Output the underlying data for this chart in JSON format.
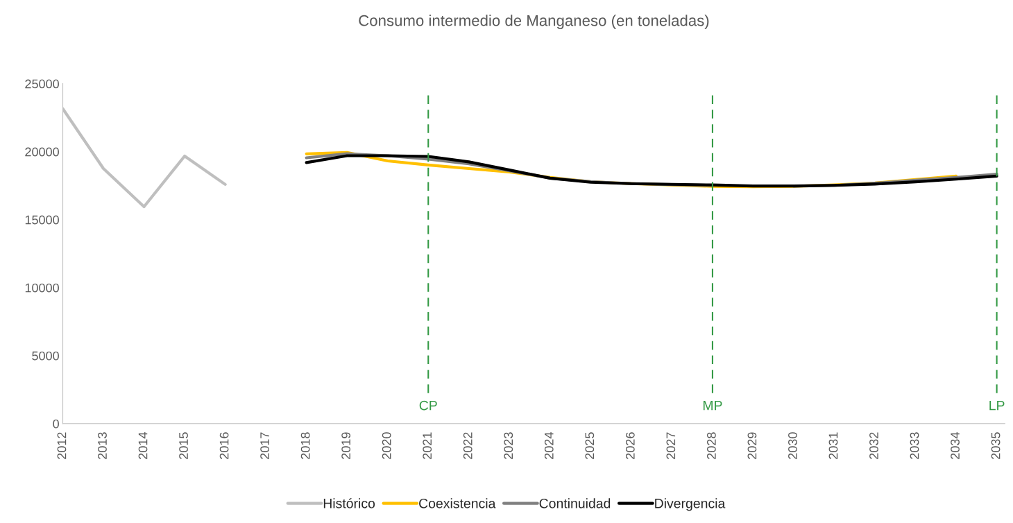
{
  "chart_data": {
    "type": "line",
    "title": "Consumo intermedio de Manganeso (en toneladas)",
    "categories": [
      "2012",
      "2013",
      "2014",
      "2015",
      "2016",
      "2017",
      "2018",
      "2019",
      "2020",
      "2021",
      "2022",
      "2023",
      "2024",
      "2025",
      "2026",
      "2027",
      "2028",
      "2029",
      "2030",
      "2031",
      "2032",
      "2033",
      "2034",
      "2035"
    ],
    "series": [
      {
        "name": "Histórico",
        "color": "#bfbfbf",
        "values": [
          23160,
          18760,
          15950,
          19680,
          17590,
          null,
          null,
          null,
          null,
          null,
          null,
          null,
          null,
          null,
          null,
          null,
          null,
          null,
          null,
          null,
          null,
          null,
          null,
          null
        ]
      },
      {
        "name": "Coexistencia",
        "color": "#ffc000",
        "values": [
          null,
          null,
          null,
          null,
          null,
          null,
          19840,
          19940,
          19320,
          19020,
          18760,
          18510,
          18100,
          17790,
          17650,
          17550,
          17450,
          17420,
          17450,
          17550,
          17700,
          17950,
          18200,
          null
        ]
      },
      {
        "name": "Continuidad",
        "color": "#808080",
        "values": [
          null,
          null,
          null,
          null,
          null,
          null,
          19550,
          19850,
          19700,
          19450,
          19100,
          18600,
          18050,
          17800,
          17650,
          17580,
          17520,
          null,
          17460,
          17520,
          17680,
          17900,
          18100,
          18350
        ]
      },
      {
        "name": "Divergencia",
        "color": "#000000",
        "values": [
          null,
          null,
          null,
          null,
          null,
          null,
          19200,
          19700,
          19700,
          19650,
          19250,
          18650,
          18050,
          17750,
          17650,
          17600,
          17550,
          17480,
          17480,
          17520,
          17620,
          17780,
          17980,
          18200
        ]
      }
    ],
    "ylim": [
      0,
      25000
    ],
    "yticks": [
      0,
      5000,
      10000,
      15000,
      20000,
      25000
    ],
    "ref_lines": [
      {
        "axis": "x",
        "value": "2021",
        "label": "CP",
        "color": "#339944",
        "line_style": "dashed"
      },
      {
        "axis": "x",
        "value": "2028",
        "label": "MP",
        "color": "#339944",
        "line_style": "dashed"
      },
      {
        "axis": "x",
        "value": "2035",
        "label": "LP",
        "color": "#339944",
        "line_style": "dashed"
      }
    ],
    "grid": false,
    "legend": "bottom",
    "marker": "none",
    "line_style": "solid"
  }
}
